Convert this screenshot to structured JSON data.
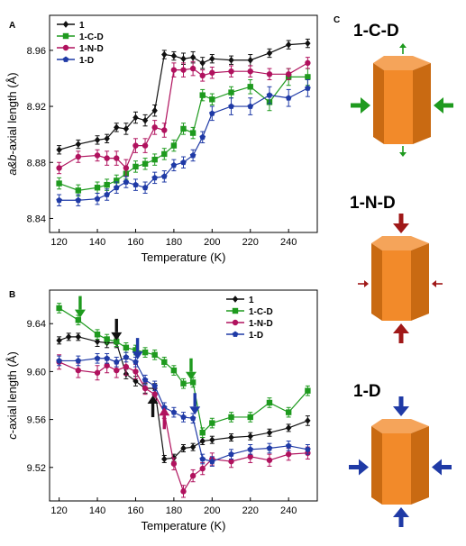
{
  "colors": {
    "1": "#111111",
    "1-C-D": "#1e9a1e",
    "1-N-D": "#b0125e",
    "1-D": "#1f3aa6",
    "crystal_front": "#f28a2a",
    "crystal_side": "#c96a12",
    "crystal_top": "#f5a45a",
    "strong_arrow_green": "#1e9a1e",
    "strong_arrow_red": "#a01818",
    "strong_arrow_blue": "#1f3aa6"
  },
  "chart_data": [
    {
      "panel": "A",
      "type": "line",
      "xlabel": "Temperature (K)",
      "ylabel_prefix": "a&b",
      "ylabel_suffix": "-axial length (Å)",
      "xlim": [
        115,
        255
      ],
      "ylim": [
        8.83,
        8.985
      ],
      "xticks": [
        120,
        140,
        160,
        180,
        200,
        220,
        240
      ],
      "yticks": [
        8.84,
        8.88,
        8.92,
        8.96
      ],
      "ytick_labels": [
        "8.84",
        "8.88",
        "8.92",
        "8.96"
      ],
      "legend_position": "top-left",
      "series": [
        {
          "name": "1",
          "marker": "diamond",
          "x": [
            120,
            130,
            140,
            145,
            150,
            155,
            160,
            165,
            170,
            175,
            180,
            185,
            190,
            195,
            200,
            210,
            220,
            230,
            240,
            250
          ],
          "y": [
            8.889,
            8.893,
            8.896,
            8.897,
            8.905,
            8.904,
            8.912,
            8.91,
            8.917,
            8.957,
            8.956,
            8.954,
            8.955,
            8.951,
            8.954,
            8.953,
            8.953,
            8.958,
            8.964,
            8.965
          ],
          "err": [
            0.003,
            0.003,
            0.003,
            0.003,
            0.003,
            0.004,
            0.004,
            0.004,
            0.004,
            0.003,
            0.003,
            0.004,
            0.004,
            0.004,
            0.003,
            0.003,
            0.004,
            0.003,
            0.003,
            0.003
          ]
        },
        {
          "name": "1-C-D",
          "marker": "square",
          "x": [
            120,
            130,
            140,
            145,
            150,
            155,
            160,
            165,
            170,
            175,
            180,
            185,
            190,
            195,
            200,
            210,
            220,
            230,
            240,
            250
          ],
          "y": [
            8.865,
            8.86,
            8.862,
            8.864,
            8.867,
            8.872,
            8.877,
            8.879,
            8.882,
            8.886,
            8.892,
            8.904,
            8.901,
            8.928,
            8.925,
            8.93,
            8.934,
            8.923,
            8.941,
            8.941
          ],
          "err": [
            0.004,
            0.004,
            0.004,
            0.004,
            0.004,
            0.004,
            0.004,
            0.004,
            0.004,
            0.004,
            0.004,
            0.004,
            0.004,
            0.004,
            0.004,
            0.004,
            0.005,
            0.006,
            0.006,
            0.006
          ]
        },
        {
          "name": "1-N-D",
          "marker": "circle",
          "x": [
            120,
            130,
            140,
            145,
            150,
            155,
            160,
            165,
            170,
            175,
            180,
            185,
            190,
            195,
            200,
            210,
            220,
            230,
            240,
            250
          ],
          "y": [
            8.876,
            8.884,
            8.885,
            8.883,
            8.883,
            8.876,
            8.892,
            8.892,
            8.905,
            8.903,
            8.946,
            8.946,
            8.947,
            8.942,
            8.944,
            8.945,
            8.945,
            8.943,
            8.943,
            8.951
          ],
          "err": [
            0.004,
            0.004,
            0.004,
            0.005,
            0.005,
            0.006,
            0.005,
            0.005,
            0.005,
            0.005,
            0.005,
            0.005,
            0.005,
            0.004,
            0.004,
            0.004,
            0.004,
            0.004,
            0.004,
            0.004
          ]
        },
        {
          "name": "1-D",
          "marker": "pentagon",
          "x": [
            120,
            130,
            140,
            145,
            150,
            155,
            160,
            165,
            170,
            175,
            180,
            185,
            190,
            195,
            200,
            210,
            220,
            230,
            240,
            250
          ],
          "y": [
            8.853,
            8.853,
            8.854,
            8.857,
            8.862,
            8.866,
            8.864,
            8.862,
            8.869,
            8.87,
            8.878,
            8.88,
            8.885,
            8.898,
            8.915,
            8.92,
            8.92,
            8.928,
            8.926,
            8.933
          ],
          "err": [
            0.004,
            0.004,
            0.004,
            0.004,
            0.004,
            0.004,
            0.004,
            0.004,
            0.004,
            0.004,
            0.004,
            0.004,
            0.004,
            0.004,
            0.005,
            0.006,
            0.006,
            0.006,
            0.006,
            0.006
          ]
        }
      ]
    },
    {
      "panel": "B",
      "type": "line",
      "xlabel": "Temperature (K)",
      "ylabel_prefix": "c",
      "ylabel_suffix": "-axial length (Å)",
      "xlim": [
        115,
        255
      ],
      "ylim": [
        9.492,
        9.668
      ],
      "xticks": [
        120,
        140,
        160,
        180,
        200,
        220,
        240
      ],
      "yticks": [
        9.52,
        9.56,
        9.6,
        9.64
      ],
      "ytick_labels": [
        "9.52",
        "9.56",
        "9.60",
        "9.64"
      ],
      "legend_position": "top-right",
      "series": [
        {
          "name": "1",
          "marker": "diamond",
          "x": [
            120,
            125,
            130,
            140,
            145,
            150,
            155,
            160,
            165,
            170,
            175,
            180,
            185,
            190,
            195,
            200,
            210,
            220,
            230,
            240,
            250
          ],
          "y": [
            9.626,
            9.629,
            9.629,
            9.625,
            9.624,
            9.624,
            9.598,
            9.592,
            9.586,
            9.586,
            9.527,
            9.528,
            9.536,
            9.537,
            9.542,
            9.543,
            9.545,
            9.546,
            9.549,
            9.553,
            9.559
          ],
          "err": [
            0.003,
            0.003,
            0.003,
            0.004,
            0.004,
            0.004,
            0.004,
            0.004,
            0.004,
            0.004,
            0.003,
            0.003,
            0.003,
            0.003,
            0.003,
            0.003,
            0.003,
            0.003,
            0.003,
            0.003,
            0.004
          ]
        },
        {
          "name": "1-C-D",
          "marker": "square",
          "x": [
            120,
            130,
            140,
            145,
            150,
            155,
            160,
            165,
            170,
            175,
            180,
            185,
            190,
            195,
            200,
            210,
            220,
            230,
            240,
            250
          ],
          "y": [
            9.653,
            9.643,
            9.631,
            9.627,
            9.625,
            9.62,
            9.618,
            9.616,
            9.614,
            9.608,
            9.601,
            9.59,
            9.591,
            9.549,
            9.557,
            9.562,
            9.562,
            9.574,
            9.566,
            9.584
          ],
          "err": [
            0.004,
            0.004,
            0.004,
            0.004,
            0.004,
            0.004,
            0.004,
            0.004,
            0.004,
            0.004,
            0.004,
            0.004,
            0.004,
            0.004,
            0.004,
            0.004,
            0.004,
            0.004,
            0.004,
            0.004
          ]
        },
        {
          "name": "1-N-D",
          "marker": "circle",
          "x": [
            120,
            130,
            140,
            145,
            150,
            155,
            160,
            165,
            170,
            175,
            180,
            185,
            190,
            195,
            200,
            210,
            220,
            230,
            240,
            250
          ],
          "y": [
            9.608,
            9.601,
            9.599,
            9.605,
            9.601,
            9.604,
            9.6,
            9.586,
            9.581,
            9.566,
            9.523,
            9.5,
            9.513,
            9.519,
            9.527,
            9.525,
            9.529,
            9.526,
            9.531,
            9.532
          ],
          "err": [
            0.006,
            0.006,
            0.006,
            0.006,
            0.006,
            0.007,
            0.006,
            0.005,
            0.005,
            0.005,
            0.005,
            0.005,
            0.005,
            0.005,
            0.005,
            0.005,
            0.005,
            0.005,
            0.005,
            0.005
          ]
        },
        {
          "name": "1-D",
          "marker": "pentagon",
          "x": [
            120,
            130,
            140,
            145,
            150,
            155,
            160,
            165,
            170,
            175,
            180,
            185,
            190,
            195,
            200,
            210,
            220,
            230,
            240,
            250
          ],
          "y": [
            9.609,
            9.609,
            9.611,
            9.611,
            9.608,
            9.612,
            9.608,
            9.593,
            9.588,
            9.57,
            9.566,
            9.562,
            9.561,
            9.527,
            9.525,
            9.531,
            9.535,
            9.536,
            9.538,
            9.535
          ],
          "err": [
            0.004,
            0.004,
            0.004,
            0.004,
            0.004,
            0.004,
            0.004,
            0.004,
            0.004,
            0.004,
            0.004,
            0.004,
            0.004,
            0.004,
            0.004,
            0.004,
            0.004,
            0.004,
            0.004,
            0.004
          ]
        }
      ],
      "annotation_arrows": [
        {
          "series": "1-C-D",
          "at_x": 131,
          "tip_y": 9.645,
          "direction": "down"
        },
        {
          "series": "1",
          "at_x": 150,
          "tip_y": 9.626,
          "direction": "down"
        },
        {
          "series": "1-D",
          "at_x": 161,
          "tip_y": 9.61,
          "direction": "down"
        },
        {
          "series": "1-C-D",
          "at_x": 189,
          "tip_y": 9.593,
          "direction": "down"
        },
        {
          "series": "1-D",
          "at_x": 191,
          "tip_y": 9.564,
          "direction": "down"
        },
        {
          "series": "1",
          "at_x": 169,
          "tip_y": 9.58,
          "direction": "up"
        },
        {
          "series": "1-N-D",
          "at_x": 175,
          "tip_y": 9.57,
          "direction": "up"
        }
      ]
    }
  ],
  "panel_c": {
    "letter": "C",
    "crystals": [
      {
        "label": "1-C-D",
        "side_arrows": "strong",
        "side_color": "green",
        "vertical_arrows": "weak",
        "vertical_color": "green"
      },
      {
        "label": "1-N-D",
        "side_arrows": "weak",
        "side_color": "red",
        "vertical_arrows": "strong",
        "vertical_color": "red"
      },
      {
        "label": "1-D",
        "side_arrows": "strong",
        "side_color": "blue",
        "vertical_arrows": "strong",
        "vertical_color": "blue"
      }
    ]
  }
}
